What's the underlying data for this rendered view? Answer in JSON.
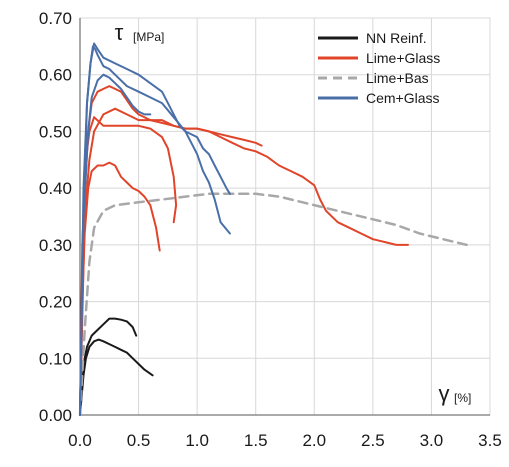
{
  "chart_data": {
    "type": "line",
    "ylabel_symbol": "τ",
    "ylabel_unit": "[MPa]",
    "xlabel_symbol": "γ",
    "xlabel_unit": "[%]",
    "xlim": [
      0,
      3.5
    ],
    "ylim": [
      0,
      0.7
    ],
    "x_ticks": [
      0,
      0.5,
      1,
      1.5,
      2,
      2.5,
      3,
      3.5
    ],
    "x_tick_labels": [
      "0.0",
      "0.5",
      "1.0",
      "1.5",
      "2.0",
      "2.5",
      "3.0",
      "3.5"
    ],
    "y_ticks": [
      0,
      0.1,
      0.2,
      0.3,
      0.4,
      0.5,
      0.6,
      0.7
    ],
    "y_tick_labels": [
      "0.00",
      "0.10",
      "0.20",
      "0.30",
      "0.40",
      "0.50",
      "0.60",
      "0.70"
    ],
    "grid": true,
    "legend_position": "top-right",
    "legend": [
      {
        "label": "NN Reinf.",
        "color": "#1a1a1a",
        "dash": "solid"
      },
      {
        "label": "Lime+Glass",
        "color": "#e0452a",
        "dash": "solid"
      },
      {
        "label": "Lime+Bas",
        "color": "#a8a8a8",
        "dash": "dashed"
      },
      {
        "label": "Cem+Glass",
        "color": "#4a6fa8",
        "dash": "solid"
      }
    ],
    "series": [
      {
        "group": "NN Reinf.",
        "color": "#1a1a1a",
        "dash": "solid",
        "points": [
          [
            0,
            0
          ],
          [
            0.02,
            0.06
          ],
          [
            0.04,
            0.1
          ],
          [
            0.06,
            0.12
          ],
          [
            0.1,
            0.14
          ],
          [
            0.15,
            0.15
          ],
          [
            0.2,
            0.16
          ],
          [
            0.25,
            0.17
          ],
          [
            0.3,
            0.17
          ],
          [
            0.35,
            0.168
          ],
          [
            0.4,
            0.165
          ],
          [
            0.45,
            0.155
          ],
          [
            0.48,
            0.14
          ]
        ]
      },
      {
        "group": "NN Reinf.",
        "color": "#1a1a1a",
        "dash": "solid",
        "points": [
          [
            0,
            0
          ],
          [
            0.03,
            0.07
          ],
          [
            0.05,
            0.1
          ],
          [
            0.08,
            0.12
          ],
          [
            0.12,
            0.13
          ],
          [
            0.16,
            0.133
          ],
          [
            0.2,
            0.13
          ],
          [
            0.25,
            0.125
          ],
          [
            0.3,
            0.12
          ],
          [
            0.35,
            0.115
          ],
          [
            0.4,
            0.11
          ],
          [
            0.45,
            0.1
          ],
          [
            0.5,
            0.09
          ],
          [
            0.55,
            0.08
          ],
          [
            0.62,
            0.07
          ]
        ]
      },
      {
        "group": "Lime+Glass",
        "color": "#e0452a",
        "dash": "solid",
        "points": [
          [
            0,
            0
          ],
          [
            0.02,
            0.2
          ],
          [
            0.04,
            0.32
          ],
          [
            0.07,
            0.4
          ],
          [
            0.1,
            0.43
          ],
          [
            0.15,
            0.44
          ],
          [
            0.2,
            0.44
          ],
          [
            0.25,
            0.445
          ],
          [
            0.3,
            0.44
          ],
          [
            0.35,
            0.42
          ],
          [
            0.4,
            0.41
          ],
          [
            0.45,
            0.4
          ],
          [
            0.5,
            0.395
          ],
          [
            0.55,
            0.385
          ],
          [
            0.6,
            0.37
          ],
          [
            0.65,
            0.33
          ],
          [
            0.68,
            0.29
          ]
        ]
      },
      {
        "group": "Lime+Glass",
        "color": "#e0452a",
        "dash": "solid",
        "points": [
          [
            0,
            0
          ],
          [
            0.02,
            0.3
          ],
          [
            0.05,
            0.45
          ],
          [
            0.08,
            0.5
          ],
          [
            0.12,
            0.525
          ],
          [
            0.2,
            0.51
          ],
          [
            0.3,
            0.51
          ],
          [
            0.4,
            0.51
          ],
          [
            0.5,
            0.51
          ],
          [
            0.6,
            0.505
          ],
          [
            0.7,
            0.49
          ],
          [
            0.75,
            0.47
          ],
          [
            0.8,
            0.42
          ],
          [
            0.82,
            0.37
          ],
          [
            0.8,
            0.34
          ]
        ]
      },
      {
        "group": "Lime+Glass",
        "color": "#e0452a",
        "dash": "solid",
        "points": [
          [
            0,
            0
          ],
          [
            0.03,
            0.35
          ],
          [
            0.07,
            0.5
          ],
          [
            0.1,
            0.55
          ],
          [
            0.15,
            0.57
          ],
          [
            0.2,
            0.575
          ],
          [
            0.25,
            0.58
          ],
          [
            0.3,
            0.575
          ],
          [
            0.35,
            0.57
          ],
          [
            0.4,
            0.555
          ],
          [
            0.45,
            0.54
          ],
          [
            0.5,
            0.53
          ],
          [
            0.6,
            0.52
          ],
          [
            0.7,
            0.515
          ],
          [
            0.8,
            0.51
          ],
          [
            0.9,
            0.505
          ],
          [
            1.0,
            0.505
          ],
          [
            1.1,
            0.5
          ],
          [
            1.2,
            0.495
          ],
          [
            1.3,
            0.49
          ],
          [
            1.4,
            0.485
          ],
          [
            1.5,
            0.48
          ],
          [
            1.55,
            0.475
          ]
        ]
      },
      {
        "group": "Lime+Glass",
        "color": "#e0452a",
        "dash": "solid",
        "points": [
          [
            0,
            0
          ],
          [
            0.04,
            0.35
          ],
          [
            0.08,
            0.45
          ],
          [
            0.12,
            0.5
          ],
          [
            0.2,
            0.53
          ],
          [
            0.3,
            0.54
          ],
          [
            0.4,
            0.53
          ],
          [
            0.5,
            0.52
          ],
          [
            0.6,
            0.52
          ],
          [
            0.7,
            0.52
          ],
          [
            0.8,
            0.51
          ],
          [
            0.9,
            0.505
          ],
          [
            1.0,
            0.505
          ],
          [
            1.1,
            0.5
          ],
          [
            1.2,
            0.49
          ],
          [
            1.3,
            0.48
          ],
          [
            1.4,
            0.47
          ],
          [
            1.5,
            0.465
          ],
          [
            1.6,
            0.455
          ],
          [
            1.7,
            0.44
          ],
          [
            1.8,
            0.43
          ],
          [
            1.9,
            0.42
          ],
          [
            2.0,
            0.405
          ],
          [
            2.05,
            0.38
          ],
          [
            2.1,
            0.36
          ],
          [
            2.2,
            0.34
          ],
          [
            2.3,
            0.33
          ],
          [
            2.4,
            0.32
          ],
          [
            2.5,
            0.31
          ],
          [
            2.6,
            0.305
          ],
          [
            2.7,
            0.3
          ],
          [
            2.8,
            0.3
          ]
        ]
      },
      {
        "group": "Lime+Bas",
        "color": "#a8a8a8",
        "dash": "dashed",
        "points": [
          [
            0,
            0
          ],
          [
            0.04,
            0.15
          ],
          [
            0.08,
            0.27
          ],
          [
            0.12,
            0.33
          ],
          [
            0.2,
            0.36
          ],
          [
            0.3,
            0.37
          ],
          [
            0.5,
            0.375
          ],
          [
            0.7,
            0.38
          ],
          [
            0.9,
            0.385
          ],
          [
            1.1,
            0.39
          ],
          [
            1.3,
            0.39
          ],
          [
            1.5,
            0.39
          ],
          [
            1.7,
            0.385
          ],
          [
            1.9,
            0.375
          ],
          [
            2.1,
            0.365
          ],
          [
            2.3,
            0.355
          ],
          [
            2.5,
            0.345
          ],
          [
            2.7,
            0.335
          ],
          [
            2.9,
            0.32
          ],
          [
            3.1,
            0.31
          ],
          [
            3.3,
            0.3
          ]
        ]
      },
      {
        "group": "Cem+Glass",
        "color": "#4a6fa8",
        "dash": "solid",
        "points": [
          [
            0,
            0
          ],
          [
            0.03,
            0.35
          ],
          [
            0.06,
            0.55
          ],
          [
            0.09,
            0.62
          ],
          [
            0.11,
            0.65
          ],
          [
            0.13,
            0.645
          ],
          [
            0.15,
            0.635
          ],
          [
            0.2,
            0.615
          ],
          [
            0.25,
            0.61
          ],
          [
            0.3,
            0.6
          ],
          [
            0.4,
            0.58
          ],
          [
            0.5,
            0.57
          ],
          [
            0.6,
            0.56
          ],
          [
            0.7,
            0.55
          ],
          [
            0.8,
            0.525
          ],
          [
            0.9,
            0.5
          ],
          [
            1.0,
            0.46
          ],
          [
            1.05,
            0.43
          ],
          [
            1.1,
            0.41
          ],
          [
            1.15,
            0.38
          ],
          [
            1.2,
            0.34
          ],
          [
            1.28,
            0.32
          ]
        ]
      },
      {
        "group": "Cem+Glass",
        "color": "#4a6fa8",
        "dash": "solid",
        "points": [
          [
            0,
            0
          ],
          [
            0.03,
            0.4
          ],
          [
            0.06,
            0.55
          ],
          [
            0.09,
            0.62
          ],
          [
            0.12,
            0.655
          ],
          [
            0.15,
            0.645
          ],
          [
            0.2,
            0.63
          ],
          [
            0.3,
            0.62
          ],
          [
            0.4,
            0.61
          ],
          [
            0.5,
            0.6
          ],
          [
            0.6,
            0.585
          ],
          [
            0.7,
            0.57
          ],
          [
            0.75,
            0.55
          ],
          [
            0.8,
            0.53
          ],
          [
            0.85,
            0.51
          ],
          [
            0.9,
            0.5
          ],
          [
            1.0,
            0.49
          ],
          [
            1.05,
            0.47
          ],
          [
            1.1,
            0.46
          ],
          [
            1.15,
            0.44
          ],
          [
            1.2,
            0.42
          ],
          [
            1.25,
            0.4
          ],
          [
            1.28,
            0.39
          ]
        ]
      },
      {
        "group": "Cem+Glass",
        "color": "#4a6fa8",
        "dash": "solid",
        "points": [
          [
            0,
            0
          ],
          [
            0.03,
            0.35
          ],
          [
            0.07,
            0.5
          ],
          [
            0.1,
            0.56
          ],
          [
            0.15,
            0.59
          ],
          [
            0.2,
            0.6
          ],
          [
            0.25,
            0.595
          ],
          [
            0.3,
            0.585
          ],
          [
            0.35,
            0.575
          ],
          [
            0.4,
            0.56
          ],
          [
            0.45,
            0.545
          ],
          [
            0.5,
            0.535
          ],
          [
            0.55,
            0.53
          ],
          [
            0.6,
            0.53
          ]
        ]
      }
    ]
  }
}
